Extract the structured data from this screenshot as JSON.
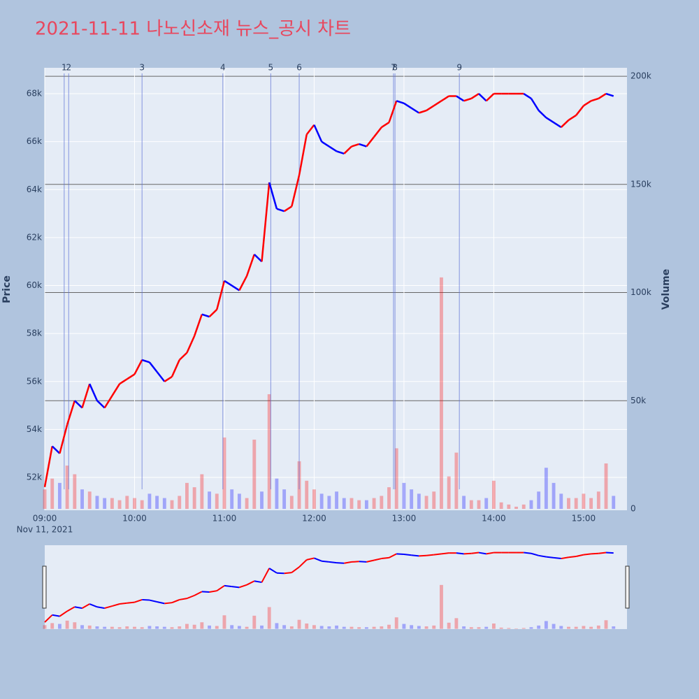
{
  "chart_data": {
    "type": "price-volume",
    "title": "2021-11-11 나노신소재 뉴스_공시 차트",
    "y_label": "Price",
    "y2_label": "Volume",
    "date_label": "Nov 11, 2021",
    "up_color": "#ff0000",
    "down_color": "#0000ff",
    "x": [
      "09:00",
      "09:05",
      "09:10",
      "09:15",
      "09:20",
      "09:25",
      "09:30",
      "09:35",
      "09:40",
      "09:45",
      "09:50",
      "09:55",
      "10:00",
      "10:05",
      "10:10",
      "10:15",
      "10:20",
      "10:25",
      "10:30",
      "10:35",
      "10:40",
      "10:45",
      "10:50",
      "10:55",
      "11:00",
      "11:05",
      "11:10",
      "11:15",
      "11:20",
      "11:25",
      "11:30",
      "11:35",
      "11:40",
      "11:45",
      "11:50",
      "11:55",
      "12:00",
      "12:05",
      "12:10",
      "12:15",
      "12:20",
      "12:25",
      "12:30",
      "12:35",
      "12:40",
      "12:45",
      "12:50",
      "12:55",
      "13:00",
      "13:05",
      "13:10",
      "13:15",
      "13:20",
      "13:25",
      "13:30",
      "13:35",
      "13:40",
      "13:45",
      "13:50",
      "13:55",
      "14:00",
      "14:05",
      "14:10",
      "14:15",
      "14:20",
      "14:25",
      "14:30",
      "14:35",
      "14:40",
      "14:45",
      "14:50",
      "14:55",
      "15:00",
      "15:05",
      "15:10",
      "15:15",
      "15:20"
    ],
    "values": [
      51600,
      53300,
      53000,
      54200,
      55200,
      54900,
      55900,
      55200,
      54900,
      55400,
      55900,
      56100,
      56300,
      56900,
      56800,
      56400,
      56000,
      56200,
      56900,
      57200,
      57900,
      58800,
      58700,
      59000,
      60200,
      60000,
      59800,
      60400,
      61300,
      61000,
      64300,
      63200,
      63100,
      63300,
      64600,
      66300,
      66700,
      66000,
      65800,
      65600,
      65500,
      65800,
      65900,
      65800,
      66200,
      66600,
      66800,
      67700,
      67600,
      67400,
      67200,
      67300,
      67500,
      67700,
      67900,
      67900,
      67700,
      67800,
      68000,
      67700,
      68000,
      68000,
      68000,
      68000,
      68000,
      67800,
      67300,
      67000,
      66800,
      66600,
      66900,
      67100,
      67500,
      67700,
      67800,
      68000,
      67900
    ],
    "volume": [
      9000,
      14000,
      12000,
      20000,
      16000,
      9000,
      8000,
      6000,
      5000,
      5000,
      4000,
      6000,
      5000,
      4000,
      7000,
      6000,
      5000,
      4000,
      6000,
      12000,
      10000,
      16000,
      8000,
      7000,
      33000,
      9000,
      7000,
      5000,
      32000,
      8000,
      53000,
      14000,
      9000,
      6000,
      22000,
      13000,
      9000,
      7000,
      6000,
      8000,
      5000,
      5000,
      4000,
      4000,
      5000,
      6000,
      10000,
      28000,
      12000,
      9000,
      7000,
      6000,
      8000,
      107000,
      15000,
      26000,
      6000,
      4000,
      4000,
      5000,
      13000,
      3000,
      2000,
      1000,
      2000,
      4000,
      8000,
      19000,
      12000,
      7000,
      5000,
      5000,
      7000,
      5000,
      8000,
      21000,
      6000
    ],
    "xlim": [
      "09:00",
      "15:29"
    ],
    "xticks": [
      "09:00",
      "10:00",
      "11:00",
      "12:00",
      "13:00",
      "14:00",
      "15:00"
    ],
    "ylim": [
      50630,
      69080
    ],
    "yticks": [
      {
        "value": 52000,
        "label": "52k"
      },
      {
        "value": 54000,
        "label": "54k"
      },
      {
        "value": 56000,
        "label": "56k"
      },
      {
        "value": 58000,
        "label": "58k"
      },
      {
        "value": 60000,
        "label": "60k"
      },
      {
        "value": 62000,
        "label": "62k"
      },
      {
        "value": 64000,
        "label": "64k"
      },
      {
        "value": 66000,
        "label": "66k"
      },
      {
        "value": 68000,
        "label": "68k"
      }
    ],
    "y2lim": [
      -650,
      203900
    ],
    "y2ticks": [
      0,
      {
        "value": 50000,
        "label": "50k"
      },
      {
        "value": 100000,
        "label": "100k"
      },
      {
        "value": 150000,
        "label": "150k"
      },
      {
        "value": 200000,
        "label": "200k"
      }
    ],
    "markers": {
      "labels": [
        "1",
        "2",
        "3",
        "4",
        "5",
        "6",
        "7",
        "8",
        "9"
      ],
      "x": [
        "09:13",
        "09:16",
        "10:05",
        "10:59",
        "11:31",
        "11:50",
        "12:53",
        "12:54",
        "13:37"
      ]
    }
  }
}
